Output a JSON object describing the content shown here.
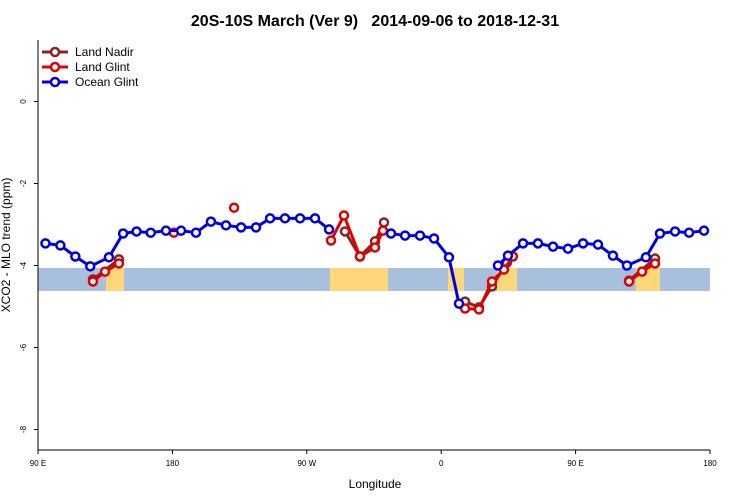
{
  "chart_data": {
    "type": "line",
    "title": "20S-10S March (Ver 9)   2014-09-06 to 2018-12-31",
    "x_label": "Longitude",
    "y_label": "XCO2 - MLO trend (ppm)",
    "xlim": [
      90,
      540
    ],
    "xticks": [
      {
        "value": 90,
        "label": "90 E"
      },
      {
        "value": 180,
        "label": "180"
      },
      {
        "value": 270,
        "label": "90 W"
      },
      {
        "value": 360,
        "label": "0"
      },
      {
        "value": 450,
        "label": "90 E"
      },
      {
        "value": 540,
        "label": "180"
      }
    ],
    "ylim": [
      -8.5,
      1.5
    ],
    "yticks": [
      0,
      -2,
      -4,
      -6,
      -8
    ],
    "legend": "top-left",
    "series": [
      {
        "name": "Land Nadir",
        "color": "#8b2323",
        "x": [
          126.8,
          144.2,
          null,
          295.6,
          305.6,
          315.7,
          321.7,
          null,
          376,
          385.3,
          394,
          404,
          407,
          null,
          485.8,
          503.2
        ],
        "values": [
          -4.34,
          -3.85,
          null,
          -3.17,
          -3.78,
          -3.41,
          -2.95,
          null,
          -4.88,
          -5.02,
          -4.51,
          -3.93,
          -3.78,
          null,
          -4.37,
          -3.83
        ]
      },
      {
        "name": "Land Glint",
        "color": "#e00000",
        "x": [
          126.8,
          134.9,
          144.2,
          null,
          181,
          null,
          221.3,
          null,
          286.2,
          294.9,
          305.6,
          315.7,
          321,
          null,
          376,
          385.3,
          394,
          402,
          408,
          null,
          485.8,
          494.5,
          503.2
        ],
        "values": [
          -4.39,
          -4.15,
          -3.95,
          null,
          -3.2,
          null,
          -2.59,
          null,
          -3.39,
          -2.78,
          -3.78,
          -3.56,
          -3.15,
          null,
          -5.05,
          -5.07,
          -4.39,
          -4.1,
          -3.78,
          null,
          -4.39,
          -4.15,
          -3.95
        ]
      },
      {
        "name": "Ocean Glint",
        "color": "#0000e0",
        "x": [
          95,
          105,
          115,
          125,
          137.5,
          147,
          156,
          165.5,
          175.7,
          185.8,
          195.8,
          205.8,
          215.9,
          226,
          236,
          245.4,
          255.4,
          265.5,
          275.5,
          284.9,
          null,
          326.4,
          335.8,
          345.8,
          355.2,
          365.2,
          371.9,
          null,
          398,
          404.7,
          414.8,
          424.8,
          434.9,
          444.9,
          455,
          465,
          475,
          484.4,
          497.1,
          506.5,
          516.6,
          526,
          536
        ],
        "values": [
          -3.46,
          -3.51,
          -3.78,
          -4.02,
          -3.8,
          -3.22,
          -3.17,
          -3.2,
          -3.15,
          -3.15,
          -3.2,
          -2.93,
          -3.02,
          -3.07,
          -3.07,
          -2.85,
          -2.85,
          -2.85,
          -2.85,
          -3.12,
          null,
          -3.22,
          -3.27,
          -3.27,
          -3.34,
          -3.8,
          -4.93,
          null,
          -4.0,
          -3.76,
          -3.46,
          -3.46,
          -3.54,
          -3.59,
          -3.46,
          -3.49,
          -3.76,
          -4.0,
          -3.8,
          -3.22,
          -3.17,
          -3.2,
          -3.15
        ]
      }
    ]
  }
}
